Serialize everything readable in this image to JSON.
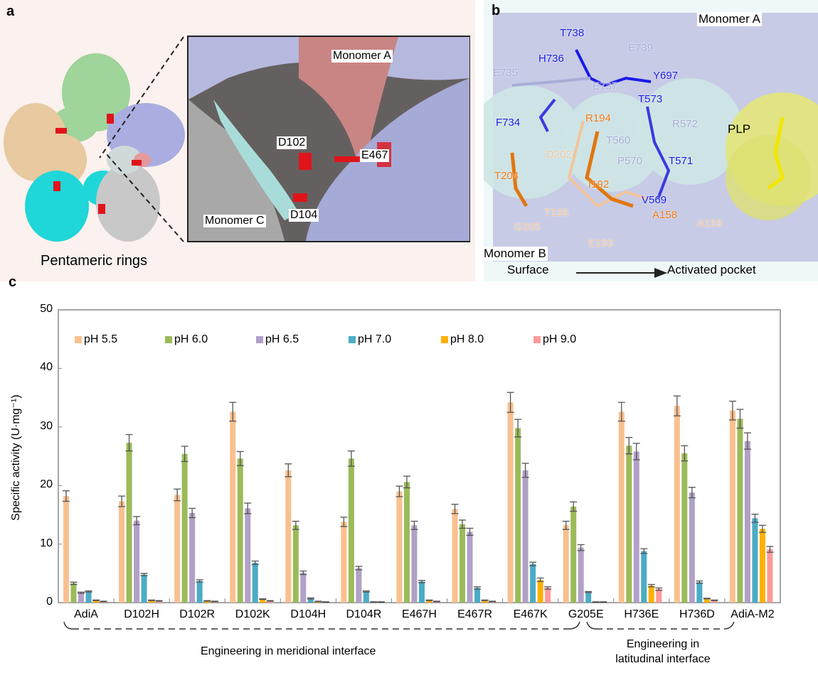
{
  "panel_a": {
    "letter": "a",
    "caption": "Pentameric rings",
    "labels": {
      "monomer_a": "Monomer A",
      "monomer_c": "Monomer C",
      "d102": "D102",
      "d104": "D104",
      "e467": "E467"
    }
  },
  "panel_b": {
    "letter": "b",
    "monomer_a": "Monomer A",
    "monomer_b": "Monomer B",
    "surface": "Surface",
    "activated_pocket": "Activated pocket",
    "plp": "PLP",
    "residues": [
      {
        "name": "T738",
        "color": "#1a1ae6"
      },
      {
        "name": "H736",
        "color": "#1a1ae6"
      },
      {
        "name": "E735",
        "color": "#a8acd8"
      },
      {
        "name": "E739",
        "color": "#a8acd8"
      },
      {
        "name": "Y697",
        "color": "#1a1ae6"
      },
      {
        "name": "E737",
        "color": "#a8acd8"
      },
      {
        "name": "T573",
        "color": "#1a1ae6"
      },
      {
        "name": "F734",
        "color": "#1a1ae6"
      },
      {
        "name": "R194",
        "color": "#f07814"
      },
      {
        "name": "R572",
        "color": "#a8acd8"
      },
      {
        "name": "T560",
        "color": "#a8acd8"
      },
      {
        "name": "D202",
        "color": "#f2c49c"
      },
      {
        "name": "P570",
        "color": "#a8acd8"
      },
      {
        "name": "T571",
        "color": "#1a1ae6"
      },
      {
        "name": "T204",
        "color": "#f07814"
      },
      {
        "name": "I192",
        "color": "#f07814"
      },
      {
        "name": "V569",
        "color": "#1a1ae6"
      },
      {
        "name": "T195",
        "color": "#f2c49c"
      },
      {
        "name": "A158",
        "color": "#f07814"
      },
      {
        "name": "A159",
        "color": "#f2c49c"
      },
      {
        "name": "G205",
        "color": "#f2c49c"
      },
      {
        "name": "E193",
        "color": "#f2c49c"
      }
    ]
  },
  "panel_c": {
    "letter": "c",
    "groups": [
      {
        "label": "Engineering in meridional interface"
      },
      {
        "label_line1": "Engineering in",
        "label_line2": "latitudinal interface"
      }
    ]
  },
  "chart_data": {
    "type": "bar",
    "ylabel": "Specific activity (U·mg⁻¹)",
    "ylim": [
      0,
      50
    ],
    "yticks": [
      "0",
      "10",
      "20",
      "30",
      "40",
      "50"
    ],
    "legend_position": "top",
    "grid": false,
    "categories": [
      "AdiA",
      "D102H",
      "D102R",
      "D102K",
      "D104H",
      "D104R",
      "E467H",
      "E467R",
      "E467K",
      "G205E",
      "H736E",
      "H736D",
      "AdiA-M2"
    ],
    "series": [
      {
        "name": "pH 5.5",
        "color": "#f9c08f",
        "values": [
          18.2,
          17.3,
          18.4,
          32.6,
          22.6,
          13.8,
          19.0,
          16.0,
          34.2,
          13.2,
          32.6,
          33.6,
          32.8
        ],
        "errors": [
          0.9,
          0.9,
          1.0,
          1.6,
          1.1,
          0.8,
          0.9,
          0.8,
          1.7,
          0.7,
          1.6,
          1.7,
          1.6
        ]
      },
      {
        "name": "pH 6.0",
        "color": "#9bbb59",
        "values": [
          3.3,
          27.3,
          25.4,
          24.6,
          13.2,
          24.6,
          20.6,
          13.4,
          29.8,
          16.4,
          26.8,
          25.5,
          31.4
        ],
        "errors": [
          0.2,
          1.4,
          1.3,
          1.2,
          0.7,
          1.3,
          1.0,
          0.7,
          1.5,
          0.8,
          1.4,
          1.3,
          1.6
        ]
      },
      {
        "name": "pH 6.5",
        "color": "#b1a0c7",
        "values": [
          1.7,
          14.0,
          15.3,
          16.1,
          5.1,
          5.9,
          13.2,
          12.1,
          22.6,
          9.4,
          25.8,
          18.8,
          27.6
        ],
        "errors": [
          0.1,
          0.7,
          0.8,
          0.9,
          0.3,
          0.3,
          0.7,
          0.6,
          1.2,
          0.5,
          1.4,
          0.9,
          1.4
        ]
      },
      {
        "name": "pH 7.0",
        "color": "#4bacc6",
        "values": [
          1.9,
          4.8,
          3.7,
          6.8,
          0.7,
          1.9,
          3.6,
          2.5,
          6.6,
          1.8,
          8.8,
          3.5,
          14.4
        ],
        "errors": [
          0.1,
          0.2,
          0.2,
          0.3,
          0.1,
          0.1,
          0.2,
          0.2,
          0.3,
          0.1,
          0.4,
          0.2,
          0.7
        ]
      },
      {
        "name": "pH 8.0",
        "color": "#ffb000",
        "values": [
          0.4,
          0.4,
          0.3,
          0.6,
          0.2,
          0.1,
          0.4,
          0.4,
          3.9,
          0.1,
          2.9,
          0.7,
          12.6
        ],
        "errors": [
          0.05,
          0.05,
          0.05,
          0.05,
          0.05,
          0.05,
          0.05,
          0.05,
          0.3,
          0.05,
          0.2,
          0.05,
          0.6
        ]
      },
      {
        "name": "pH 9.0",
        "color": "#ff9999",
        "values": [
          0.2,
          0.3,
          0.2,
          0.3,
          0.1,
          0.1,
          0.2,
          0.2,
          2.5,
          0.1,
          2.3,
          0.4,
          9.1
        ],
        "errors": [
          0.05,
          0.05,
          0.05,
          0.05,
          0.05,
          0.05,
          0.05,
          0.05,
          0.2,
          0.05,
          0.2,
          0.05,
          0.5
        ]
      }
    ]
  }
}
